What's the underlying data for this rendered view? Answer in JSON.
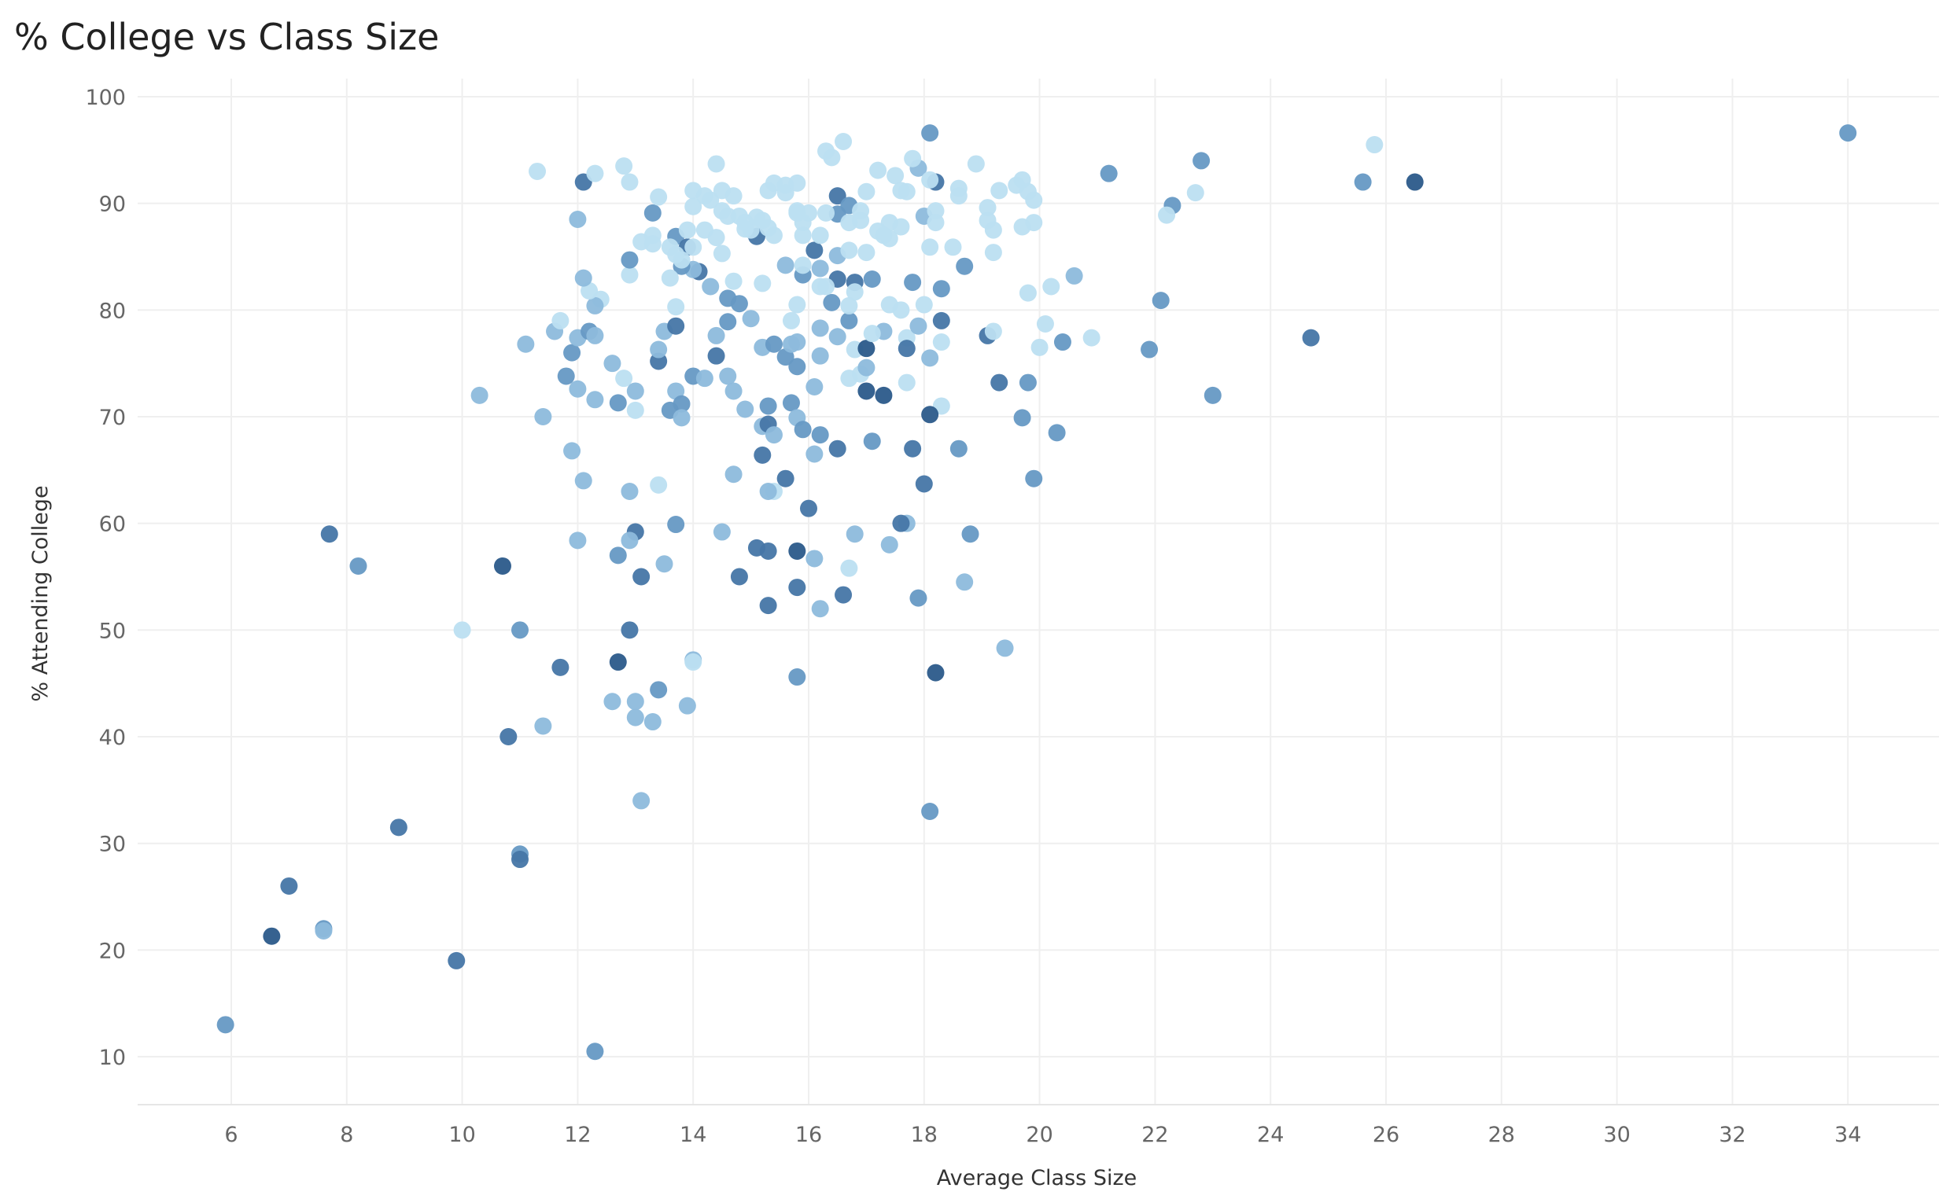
{
  "chart_data": {
    "type": "scatter",
    "title": "% College vs Class Size",
    "xlabel": "Average Class Size",
    "ylabel": "% Attending College",
    "xlim": [
      4.5,
      35.5
    ],
    "ylim": [
      5.5,
      102
    ],
    "xticks": [
      6,
      8,
      10,
      12,
      14,
      16,
      18,
      20,
      22,
      24,
      26,
      28,
      30,
      32,
      34
    ],
    "yticks": [
      10,
      20,
      30,
      40,
      50,
      60,
      70,
      80,
      90,
      100
    ],
    "grid": true,
    "color_scale": [
      "#bcdff1",
      "#8dbbdc",
      "#6699c4",
      "#4676a6",
      "#2b5a8a"
    ],
    "points": [
      [
        5.9,
        13,
        2
      ],
      [
        6.7,
        21.3,
        4
      ],
      [
        7.0,
        26,
        3
      ],
      [
        7.6,
        22,
        2
      ],
      [
        7.6,
        21.8,
        1
      ],
      [
        7.7,
        59,
        3
      ],
      [
        8.2,
        56,
        2
      ],
      [
        8.9,
        31.5,
        3
      ],
      [
        9.9,
        19,
        3
      ],
      [
        10.0,
        50,
        0
      ],
      [
        10.3,
        72,
        1
      ],
      [
        10.7,
        56,
        4
      ],
      [
        10.8,
        40,
        3
      ],
      [
        11.0,
        50,
        2
      ],
      [
        11.0,
        29,
        2
      ],
      [
        11.0,
        28.5,
        3
      ],
      [
        11.1,
        76.8,
        1
      ],
      [
        11.3,
        93,
        0
      ],
      [
        11.4,
        70,
        1
      ],
      [
        11.4,
        41,
        1
      ],
      [
        11.7,
        46.5,
        3
      ],
      [
        12.0,
        88.5,
        1
      ],
      [
        12.1,
        92,
        3
      ],
      [
        12.3,
        10.5,
        2
      ],
      [
        12.7,
        47,
        4
      ],
      [
        12.9,
        50,
        3
      ],
      [
        12.8,
        93.5,
        0
      ],
      [
        34,
        96.6,
        2
      ],
      [
        25.8,
        95.5,
        0
      ],
      [
        25.6,
        92,
        2
      ],
      [
        26.5,
        92,
        4
      ],
      [
        24.7,
        77.4,
        3
      ],
      [
        23.0,
        72,
        2
      ],
      [
        22.8,
        94,
        2
      ],
      [
        22.7,
        91,
        0
      ],
      [
        22.3,
        89.8,
        2
      ],
      [
        22.2,
        88.9,
        0
      ],
      [
        22.1,
        80.9,
        2
      ],
      [
        21.9,
        76.3,
        2
      ],
      [
        21.2,
        92.8,
        2
      ],
      [
        20.9,
        77.4,
        0
      ],
      [
        20.6,
        83.2,
        1
      ],
      [
        20.4,
        77,
        2
      ],
      [
        20.3,
        68.5,
        2
      ],
      [
        20.2,
        82.2,
        0
      ],
      [
        20.1,
        78.7,
        0
      ],
      [
        20.0,
        76.5,
        0
      ],
      [
        19.9,
        64.2,
        2
      ],
      [
        19.8,
        73.2,
        2
      ],
      [
        19.8,
        81.6,
        0
      ],
      [
        19.7,
        69.9,
        2
      ],
      [
        19.4,
        48.3,
        1
      ],
      [
        19.3,
        73.2,
        3
      ],
      [
        19.1,
        77.6,
        3
      ],
      [
        19.2,
        78,
        0
      ],
      [
        18.8,
        59,
        2
      ],
      [
        18.7,
        54.5,
        1
      ],
      [
        18.6,
        67,
        2
      ],
      [
        18.7,
        84.1,
        2
      ],
      [
        18.1,
        96.6,
        2
      ],
      [
        18.1,
        33,
        2
      ],
      [
        18.2,
        46,
        4
      ],
      [
        18.0,
        63.7,
        3
      ],
      [
        17.9,
        53,
        2
      ],
      [
        17.8,
        67,
        3
      ],
      [
        17.7,
        60,
        1
      ],
      [
        17.4,
        58,
        1
      ],
      [
        17.6,
        60,
        3
      ],
      [
        17.3,
        72,
        4
      ],
      [
        17.1,
        67.7,
        2
      ],
      [
        17.0,
        72.4,
        4
      ],
      [
        16.8,
        59,
        1
      ],
      [
        16.7,
        55.8,
        0
      ],
      [
        16.6,
        53.3,
        3
      ],
      [
        16.5,
        67,
        3
      ],
      [
        16.2,
        68.3,
        2
      ],
      [
        16.1,
        56.7,
        1
      ],
      [
        16.2,
        52,
        1
      ],
      [
        16.0,
        61.4,
        3
      ],
      [
        15.8,
        57.4,
        4
      ],
      [
        15.8,
        54,
        3
      ],
      [
        15.8,
        45.6,
        2
      ],
      [
        15.6,
        64.2,
        3
      ],
      [
        15.4,
        63,
        0
      ],
      [
        15.3,
        63,
        1
      ],
      [
        15.3,
        57.4,
        3
      ],
      [
        15.1,
        57.7,
        3
      ],
      [
        15.2,
        66.4,
        3
      ],
      [
        15.3,
        52.3,
        3
      ],
      [
        14.8,
        55,
        3
      ],
      [
        14.5,
        59.2,
        1
      ],
      [
        14.7,
        64.6,
        1
      ],
      [
        14.0,
        47.2,
        1
      ],
      [
        13.9,
        42.9,
        1
      ],
      [
        13.7,
        59.9,
        2
      ],
      [
        13.5,
        56.2,
        1
      ],
      [
        13.4,
        44.4,
        2
      ],
      [
        13.3,
        41.4,
        1
      ],
      [
        13.1,
        55,
        3
      ],
      [
        13.0,
        59.2,
        3
      ],
      [
        12.9,
        58.4,
        1
      ],
      [
        12.7,
        57,
        2
      ],
      [
        13.0,
        43.3,
        1
      ],
      [
        13.0,
        41.8,
        1
      ],
      [
        12.6,
        43.3,
        1
      ],
      [
        13.1,
        34,
        1
      ],
      [
        12.0,
        58.4,
        1
      ],
      [
        12.9,
        63,
        1
      ],
      [
        12.1,
        64,
        1
      ],
      [
        11.9,
        66.8,
        1
      ],
      [
        13.4,
        63.6,
        0
      ],
      [
        14.0,
        47,
        0
      ],
      [
        12.0,
        72.6,
        1
      ],
      [
        11.8,
        73.8,
        2
      ],
      [
        11.9,
        76,
        2
      ],
      [
        12.0,
        77.4,
        1
      ],
      [
        11.6,
        78,
        1
      ],
      [
        11.7,
        79,
        0
      ],
      [
        12.2,
        78,
        2
      ],
      [
        12.3,
        77.6,
        1
      ],
      [
        12.4,
        81,
        0
      ],
      [
        12.3,
        80.4,
        1
      ],
      [
        12.2,
        81.8,
        0
      ],
      [
        12.1,
        83,
        1
      ],
      [
        12.6,
        75,
        1
      ],
      [
        12.8,
        73.6,
        0
      ],
      [
        12.3,
        71.6,
        1
      ],
      [
        12.7,
        71.3,
        2
      ],
      [
        13.0,
        72.4,
        1
      ],
      [
        13.0,
        70.6,
        0
      ],
      [
        13.4,
        75.2,
        3
      ],
      [
        13.4,
        76.3,
        1
      ],
      [
        13.5,
        78,
        1
      ],
      [
        13.7,
        78.5,
        3
      ],
      [
        13.7,
        80.3,
        0
      ],
      [
        13.7,
        72.4,
        1
      ],
      [
        13.6,
        70.6,
        2
      ],
      [
        13.8,
        71.2,
        2
      ],
      [
        13.8,
        69.9,
        1
      ],
      [
        14.0,
        73.8,
        2
      ],
      [
        14.2,
        73.6,
        1
      ],
      [
        14.4,
        75.7,
        3
      ],
      [
        14.4,
        77.6,
        1
      ],
      [
        14.6,
        78.9,
        2
      ],
      [
        14.6,
        73.8,
        1
      ],
      [
        14.7,
        72.4,
        1
      ],
      [
        14.9,
        70.7,
        1
      ],
      [
        15.2,
        69.1,
        1
      ],
      [
        15.3,
        71,
        2
      ],
      [
        15.3,
        69.3,
        3
      ],
      [
        15.4,
        68.3,
        1
      ],
      [
        15.2,
        76.5,
        1
      ],
      [
        15.4,
        76.8,
        2
      ],
      [
        15.6,
        75.6,
        2
      ],
      [
        15.8,
        74.7,
        2
      ],
      [
        15.7,
        76.8,
        1
      ],
      [
        15.8,
        77,
        1
      ],
      [
        15.7,
        71.3,
        2
      ],
      [
        15.8,
        69.9,
        1
      ],
      [
        15.9,
        68.8,
        2
      ],
      [
        16.1,
        66.5,
        1
      ],
      [
        16.1,
        72.8,
        1
      ],
      [
        16.2,
        75.7,
        1
      ],
      [
        16.2,
        78.3,
        1
      ],
      [
        16.5,
        77.5,
        1
      ],
      [
        16.4,
        80.7,
        2
      ],
      [
        16.7,
        79,
        2
      ],
      [
        16.8,
        76.3,
        0
      ],
      [
        16.7,
        73.6,
        0
      ],
      [
        16.9,
        74,
        0
      ],
      [
        17.0,
        74.6,
        1
      ],
      [
        17.0,
        76.4,
        4
      ],
      [
        17.3,
        78,
        1
      ],
      [
        17.1,
        77.8,
        0
      ],
      [
        17.4,
        80.5,
        0
      ],
      [
        17.7,
        77.4,
        0
      ],
      [
        17.7,
        76.4,
        3
      ],
      [
        17.7,
        73.2,
        0
      ],
      [
        17.9,
        78.5,
        1
      ],
      [
        18.1,
        75.5,
        1
      ],
      [
        18.3,
        77,
        0
      ],
      [
        18.3,
        79,
        3
      ],
      [
        18.3,
        71,
        0
      ],
      [
        18.1,
        70.2,
        4
      ],
      [
        18.0,
        80.5,
        0
      ],
      [
        18.3,
        82,
        2
      ],
      [
        17.8,
        82.6,
        2
      ],
      [
        17.1,
        82.9,
        2
      ],
      [
        16.5,
        82.9,
        3
      ],
      [
        16.8,
        82.6,
        3
      ],
      [
        16.2,
        83.9,
        1
      ],
      [
        16.1,
        85.6,
        3
      ],
      [
        15.9,
        83.3,
        2
      ],
      [
        15.6,
        84.2,
        1
      ],
      [
        15.2,
        82.5,
        0
      ],
      [
        14.7,
        82.7,
        0
      ],
      [
        14.3,
        82.2,
        1
      ],
      [
        14.1,
        83.6,
        3
      ],
      [
        14.0,
        83.8,
        1
      ],
      [
        13.8,
        84.1,
        2
      ],
      [
        13.6,
        83,
        0
      ],
      [
        12.9,
        83.3,
        0
      ],
      [
        12.9,
        84.7,
        2
      ],
      [
        13.3,
        89.1,
        2
      ],
      [
        13.7,
        86.9,
        2
      ],
      [
        13.9,
        85.9,
        3
      ],
      [
        15.1,
        86.9,
        3
      ],
      [
        16.5,
        90.7,
        3
      ],
      [
        16.7,
        89.8,
        2
      ],
      [
        16.5,
        89,
        2
      ],
      [
        18.2,
        92,
        3
      ],
      [
        17.9,
        93.3,
        1
      ],
      [
        18.0,
        88.8,
        1
      ],
      [
        16.5,
        85.1,
        1
      ],
      [
        14.6,
        81.1,
        2
      ],
      [
        14.8,
        80.6,
        2
      ],
      [
        15.0,
        79.2,
        1
      ],
      [
        12.3,
        92.8,
        0
      ],
      [
        12.9,
        92,
        0
      ],
      [
        13.1,
        86.4,
        0
      ],
      [
        13.4,
        90.6,
        0
      ],
      [
        13.3,
        87,
        0
      ],
      [
        13.3,
        86.2,
        0
      ],
      [
        13.6,
        85.9,
        0
      ],
      [
        13.7,
        85.2,
        0
      ],
      [
        13.9,
        87.5,
        0
      ],
      [
        14.0,
        91.2,
        0
      ],
      [
        14.2,
        90.7,
        0
      ],
      [
        14.3,
        90.3,
        0
      ],
      [
        14.4,
        93.7,
        0
      ],
      [
        14.5,
        91.2,
        0
      ],
      [
        14.5,
        89.3,
        0
      ],
      [
        14.6,
        88.8,
        0
      ],
      [
        14.7,
        90.7,
        0
      ],
      [
        14.8,
        88.8,
        0
      ],
      [
        14.9,
        88.2,
        0
      ],
      [
        15.0,
        87.5,
        0
      ],
      [
        15.1,
        88.7,
        0
      ],
      [
        15.3,
        91.2,
        0
      ],
      [
        15.4,
        91.9,
        0
      ],
      [
        15.6,
        91.7,
        0
      ],
      [
        15.6,
        91,
        0
      ],
      [
        15.8,
        91.9,
        0
      ],
      [
        15.8,
        89.3,
        0
      ],
      [
        15.9,
        88.2,
        0
      ],
      [
        16.0,
        89.1,
        0
      ],
      [
        16.2,
        87,
        0
      ],
      [
        16.3,
        94.9,
        0
      ],
      [
        16.4,
        94.3,
        0
      ],
      [
        16.6,
        95.8,
        0
      ],
      [
        16.3,
        89.1,
        0
      ],
      [
        16.7,
        88.2,
        0
      ],
      [
        16.9,
        89.3,
        0
      ],
      [
        17.0,
        91.1,
        0
      ],
      [
        17.2,
        93.1,
        0
      ],
      [
        17.5,
        92.6,
        0
      ],
      [
        17.6,
        91.2,
        0
      ],
      [
        17.8,
        94.2,
        0
      ],
      [
        17.7,
        91.1,
        0
      ],
      [
        18.1,
        92.2,
        0
      ],
      [
        18.2,
        89.3,
        0
      ],
      [
        18.6,
        91.4,
        0
      ],
      [
        18.6,
        90.7,
        0
      ],
      [
        18.9,
        93.7,
        0
      ],
      [
        19.1,
        89.6,
        0
      ],
      [
        19.1,
        88.4,
        0
      ],
      [
        19.2,
        87.5,
        0
      ],
      [
        19.3,
        91.2,
        0
      ],
      [
        19.6,
        91.7,
        0
      ],
      [
        19.7,
        92.2,
        0
      ],
      [
        19.8,
        91.1,
        0
      ],
      [
        19.9,
        90.3,
        0
      ],
      [
        19.9,
        88.2,
        0
      ],
      [
        19.7,
        87.8,
        0
      ],
      [
        19.2,
        85.4,
        0
      ],
      [
        18.5,
        85.9,
        0
      ],
      [
        18.2,
        88.2,
        0
      ],
      [
        18.1,
        85.9,
        0
      ],
      [
        17.4,
        88.2,
        0
      ],
      [
        17.3,
        87,
        0
      ],
      [
        17.4,
        86.7,
        0
      ],
      [
        17.6,
        87.8,
        0
      ],
      [
        17.2,
        87.4,
        0
      ],
      [
        16.9,
        88.4,
        0
      ],
      [
        17.0,
        85.4,
        0
      ],
      [
        16.7,
        85.6,
        0
      ],
      [
        16.3,
        82.2,
        0
      ],
      [
        16.2,
        82.2,
        0
      ],
      [
        15.9,
        87,
        0
      ],
      [
        15.8,
        89.1,
        0
      ],
      [
        15.4,
        87,
        0
      ],
      [
        15.2,
        88.4,
        0
      ],
      [
        14.5,
        85.3,
        0
      ],
      [
        14.4,
        86.8,
        0
      ],
      [
        14.2,
        87.5,
        0
      ],
      [
        14.0,
        85.9,
        0
      ],
      [
        13.8,
        84.7,
        0
      ],
      [
        14.9,
        87.6,
        0
      ],
      [
        15.3,
        87.7,
        0
      ],
      [
        15.9,
        84.2,
        0
      ],
      [
        16.7,
        80.4,
        0
      ],
      [
        16.8,
        81.7,
        0
      ],
      [
        17.6,
        80,
        0
      ],
      [
        14.0,
        89.7,
        0
      ],
      [
        15.7,
        79,
        0
      ],
      [
        15.8,
        80.5,
        0
      ]
    ]
  }
}
